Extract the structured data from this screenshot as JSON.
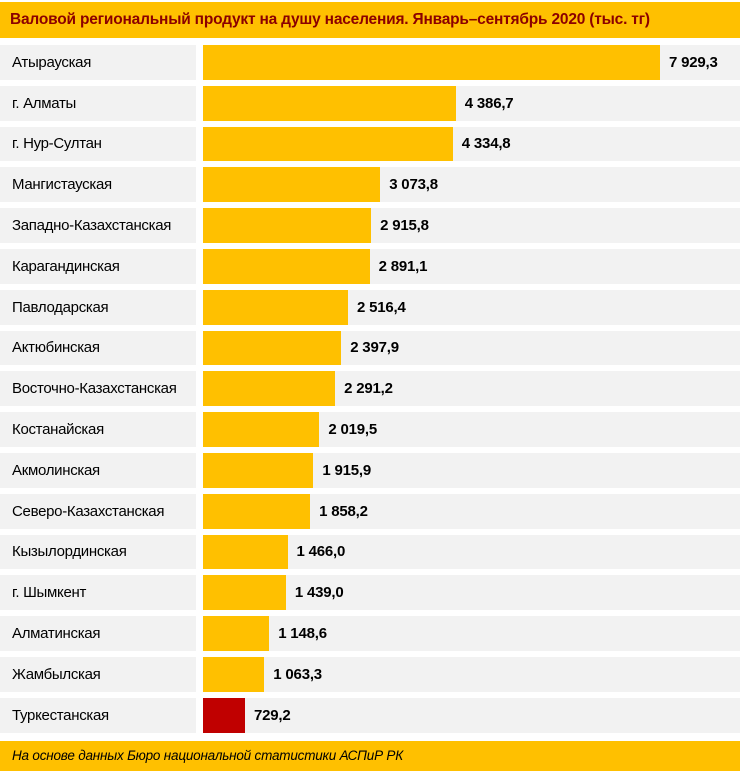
{
  "header": {
    "title": "Валовой региональный продукт на душу населения. Январь–сентябрь 2020 (тыс. тг)"
  },
  "footer": {
    "text": "На основе данных Бюро национальной статистики АСПиР РК"
  },
  "colors": {
    "accent_yellow": "#FFC000",
    "highlight_red": "#C00000",
    "row_background": "#F2F2F2",
    "title_text": "#8B0000",
    "body_text": "#000000"
  },
  "chart_data": {
    "type": "bar",
    "orientation": "horizontal",
    "title": "Валовой региональный продукт на душу населения. Январь–сентябрь 2020 (тыс. тг)",
    "unit": "тыс. тг",
    "xlabel": "",
    "ylabel": "",
    "xlim": [
      0,
      7929.3
    ],
    "grid": false,
    "legend": false,
    "max_value": 7929.3,
    "bar_color": "#FFC000",
    "highlight": {
      "category": "Туркестанская",
      "color": "#C00000"
    },
    "categories": [
      "Атырауская",
      "г. Алматы",
      "г. Нур-Султан",
      "Мангистауская",
      "Западно-Казахстанская",
      "Карагандинская",
      "Павлодарская",
      "Актюбинская",
      "Восточно-Казахстанская",
      "Костанайская",
      "Акмолинская",
      "Северо-Казахстанская",
      "Кызылординская",
      "г. Шымкент",
      "Алматинская",
      "Жамбылская",
      "Туркестанская"
    ],
    "values": [
      7929.3,
      4386.7,
      4334.8,
      3073.8,
      2915.8,
      2891.1,
      2516.4,
      2397.9,
      2291.2,
      2019.5,
      1915.9,
      1858.2,
      1466.0,
      1439.0,
      1148.6,
      1063.3,
      729.2
    ],
    "value_labels": [
      "7 929,3",
      "4 386,7",
      "4 334,8",
      "3 073,8",
      "2 915,8",
      "2 891,1",
      "2 516,4",
      "2 397,9",
      "2 291,2",
      "2 019,5",
      "1 915,9",
      "1 858,2",
      "1 466,0",
      "1 439,0",
      "1 148,6",
      "1 063,3",
      "729,2"
    ]
  }
}
